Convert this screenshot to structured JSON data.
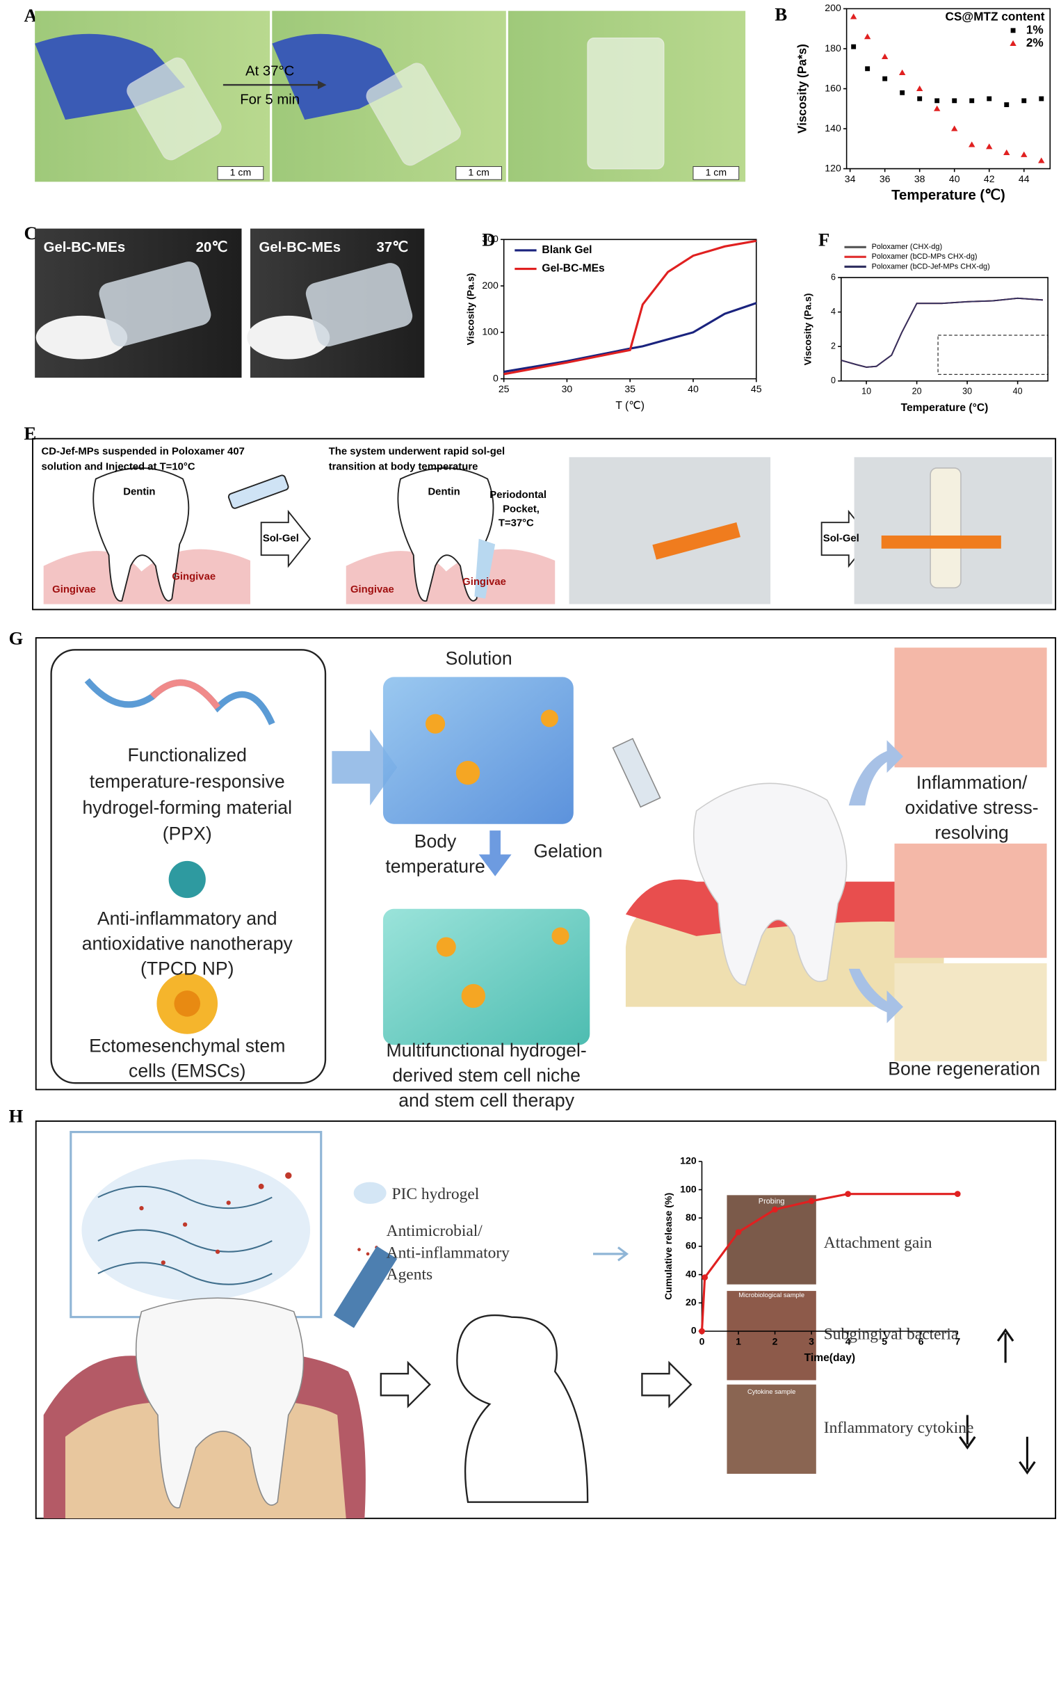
{
  "chart_data": [
    {
      "type": "scatter",
      "x_label": "Temperature (℃)",
      "y_label": "Viscosity (Pa*s)",
      "x": [
        34.2,
        35,
        36,
        37,
        38,
        39,
        40,
        41,
        42,
        43,
        44,
        45
      ],
      "series": [
        {
          "name": "1%",
          "color": "#000000",
          "marker": "square",
          "values": [
            181,
            170,
            165,
            158,
            155,
            154,
            154,
            154,
            155,
            152,
            154,
            155
          ]
        },
        {
          "name": "2%",
          "color": "#e02020",
          "marker": "triangle",
          "values": [
            196,
            186,
            176,
            168,
            160,
            150,
            140,
            132,
            131,
            128,
            127,
            124
          ]
        }
      ],
      "legend_title": "CS@MTZ  content",
      "legend": "upper right",
      "xlim": [
        33.8,
        45.5
      ],
      "xticks": [
        34,
        36,
        38,
        40,
        42,
        44
      ],
      "ylim": [
        120,
        200
      ],
      "yticks": [
        120,
        140,
        160,
        180,
        200
      ]
    },
    {
      "type": "line",
      "x_label": "T (℃)",
      "y_label": "Viscosity (Pa.s)",
      "x": [
        25,
        30,
        35,
        36,
        38,
        40,
        42.5,
        45
      ],
      "series": [
        {
          "name": "Blank Gel",
          "color": "#1a237e",
          "values": [
            15,
            38,
            65,
            70,
            85,
            100,
            140,
            163
          ]
        },
        {
          "name": "Gel-BC-MEs",
          "color": "#e02020",
          "values": [
            10,
            35,
            62,
            160,
            230,
            265,
            285,
            297
          ]
        }
      ],
      "legend": "upper left",
      "xlim": [
        25,
        45
      ],
      "xticks": [
        25,
        30,
        35,
        40,
        45
      ],
      "ylim": [
        0,
        300
      ],
      "yticks": [
        0,
        100,
        200,
        300
      ]
    },
    {
      "type": "line",
      "x_label": "Temperature (°C)",
      "y_label": "Viscosity (Pa.s)",
      "x": [
        5,
        8,
        10,
        12,
        15,
        17,
        20,
        25,
        30,
        35,
        40,
        45
      ],
      "series": [
        {
          "name": "Poloxamer (CHX-dg)",
          "color": "#555555",
          "values": [
            1.2,
            0.95,
            0.8,
            0.85,
            1.5,
            2.8,
            4.5,
            4.5,
            4.6,
            4.65,
            4.8,
            4.7
          ]
        },
        {
          "name": "Poloxamer (bCD-MPs  CHX-dg)",
          "color": "#e03030",
          "values": [
            1.2,
            0.95,
            0.8,
            0.85,
            1.5,
            2.8,
            4.5,
            4.5,
            4.6,
            4.65,
            4.8,
            4.7
          ]
        },
        {
          "name": "Poloxamer (bCD-Jef-MPs CHX-dg)",
          "color": "#303060",
          "values": [
            1.2,
            0.95,
            0.8,
            0.85,
            1.5,
            2.8,
            4.5,
            4.5,
            4.6,
            4.65,
            4.8,
            4.7
          ]
        }
      ],
      "legend": "top",
      "xlim": [
        5,
        46
      ],
      "xticks": [
        10,
        20,
        30,
        40
      ],
      "ylim": [
        0,
        6
      ],
      "yticks": [
        0,
        2,
        4,
        6
      ]
    },
    {
      "type": "line",
      "x_label": "Time(day)",
      "y_label": "Cumulative release (%)",
      "x": [
        0,
        0.08,
        1,
        2,
        3,
        4,
        7
      ],
      "series": [
        {
          "color": "#e02020",
          "marker": "circle",
          "values": [
            0,
            38,
            70,
            86,
            92,
            97,
            97
          ]
        }
      ],
      "xlim": [
        0,
        7
      ],
      "xticks": [
        0,
        1,
        2,
        3,
        4,
        5,
        6,
        7
      ],
      "ylim": [
        0,
        120
      ],
      "yticks": [
        0,
        20,
        40,
        60,
        80,
        100,
        120
      ]
    }
  ],
  "panels": {
    "A": {
      "letter": "A",
      "condition1": "At 37°C",
      "condition2": "For 5 min",
      "scale": [
        "1 cm",
        "1 cm",
        "1 cm"
      ]
    },
    "B": {
      "letter": "B"
    },
    "C": {
      "letter": "C",
      "labels": [
        "Gel-BC-MEs",
        "20℃",
        "Gel-BC-MEs",
        "37℃"
      ]
    },
    "D": {
      "letter": "D"
    },
    "E": {
      "letter": "E",
      "texts": [
        "CD-Jef-MPs suspended in Poloxamer 407",
        "solution and Injected at T=10°C",
        "Dentin",
        "Gingivae",
        "Gingivae",
        "Sol-Gel",
        "The system underwent rapid sol-gel",
        "transition at body temperature",
        "Dentin",
        "Periodontal",
        "Pocket,",
        "T=37°C",
        "Gingivae",
        "Gingivae",
        "Sol-Gel"
      ]
    },
    "F": {
      "letter": "F"
    },
    "G": {
      "letter": "G",
      "texts": [
        "Functionalized",
        "temperature-responsive",
        "hydrogel-forming material",
        "(PPX)",
        "Anti-inflammatory and",
        "antioxidative nanotherapy",
        "(TPCD NP)",
        "Ectomesenchymal stem",
        "cells (EMSCs)",
        "Solution",
        "Body",
        "temperature",
        "Gelation",
        "Multifunctional hydrogel-",
        "derived stem cell niche",
        "and stem cell therapy",
        "Inflammation/",
        "oxidative stress-",
        "resolving",
        "Bone regeneration"
      ]
    },
    "H": {
      "letter": "H",
      "texts": [
        "PIC hydrogel",
        "Antimicrobial/",
        "Anti-inflammatory",
        "Agents",
        "Probing",
        "Attachment gain",
        "Microbiological sample",
        "Subgingival bacteria",
        "Cytokine sample",
        "Inflammatory cytokine"
      ]
    }
  }
}
